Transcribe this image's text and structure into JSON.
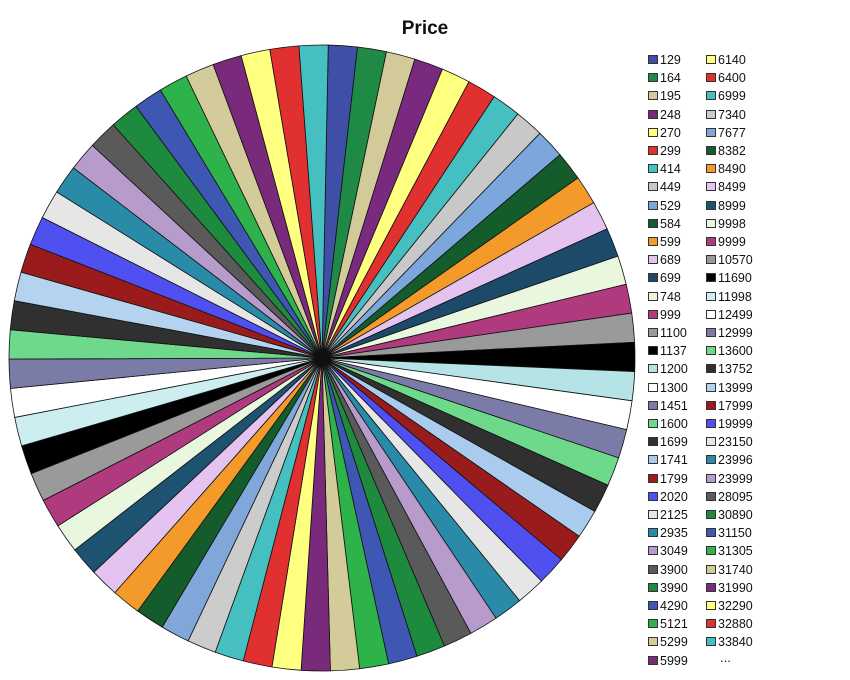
{
  "chart_data": {
    "type": "pie",
    "title": "Price",
    "legend_position": "right",
    "more_indicator": "...",
    "slices": [
      {
        "label": "129",
        "value": 1,
        "color": "#3F4FA8"
      },
      {
        "label": "164",
        "value": 1,
        "color": "#1E8A45"
      },
      {
        "label": "195",
        "value": 1,
        "color": "#D2CB99"
      },
      {
        "label": "248",
        "value": 1,
        "color": "#7A2A7E"
      },
      {
        "label": "270",
        "value": 1,
        "color": "#FFFF80"
      },
      {
        "label": "299",
        "value": 1,
        "color": "#E03030"
      },
      {
        "label": "414",
        "value": 1,
        "color": "#45BFC0"
      },
      {
        "label": "449",
        "value": 1,
        "color": "#C8C8C8"
      },
      {
        "label": "529",
        "value": 1,
        "color": "#7CA7DC"
      },
      {
        "label": "584",
        "value": 1,
        "color": "#155C2C"
      },
      {
        "label": "599",
        "value": 1,
        "color": "#F39A2A"
      },
      {
        "label": "689",
        "value": 1,
        "color": "#E4C3F0"
      },
      {
        "label": "699",
        "value": 1,
        "color": "#1D4A6B"
      },
      {
        "label": "748",
        "value": 1,
        "color": "#E8F7DE"
      },
      {
        "label": "999",
        "value": 1,
        "color": "#B03A7E"
      },
      {
        "label": "1100",
        "value": 1,
        "color": "#9A9A9A"
      },
      {
        "label": "1137",
        "value": 1,
        "color": "#000000"
      },
      {
        "label": "1200",
        "value": 1,
        "color": "#B6E3E5"
      },
      {
        "label": "1300",
        "value": 1,
        "color": "#FFFFFF"
      },
      {
        "label": "1451",
        "value": 1,
        "color": "#7B7BA8"
      },
      {
        "label": "1600",
        "value": 1,
        "color": "#6ED98A"
      },
      {
        "label": "1699",
        "value": 1,
        "color": "#303030"
      },
      {
        "label": "1741",
        "value": 1,
        "color": "#A9CCEE"
      },
      {
        "label": "1799",
        "value": 1,
        "color": "#9A1B1B"
      },
      {
        "label": "2020",
        "value": 1,
        "color": "#5050F0"
      },
      {
        "label": "2125",
        "value": 1,
        "color": "#E6E6E6"
      },
      {
        "label": "2935",
        "value": 1,
        "color": "#2A8BA8"
      },
      {
        "label": "3049",
        "value": 1,
        "color": "#B69BCB"
      },
      {
        "label": "3900",
        "value": 1,
        "color": "#5A5A5A"
      },
      {
        "label": "3990",
        "value": 1,
        "color": "#1D8A3E"
      },
      {
        "label": "4290",
        "value": 1,
        "color": "#3D57B2"
      },
      {
        "label": "5121",
        "value": 1,
        "color": "#2EB24A"
      },
      {
        "label": "5299",
        "value": 1,
        "color": "#D3CC9A"
      },
      {
        "label": "5999",
        "value": 1,
        "color": "#7A2A7A"
      },
      {
        "label": "6140",
        "value": 1,
        "color": "#FFFF80"
      },
      {
        "label": "6400",
        "value": 1,
        "color": "#E03030"
      },
      {
        "label": "6999",
        "value": 1,
        "color": "#45BFC0"
      },
      {
        "label": "7340",
        "value": 1,
        "color": "#CCCCCC"
      },
      {
        "label": "7677",
        "value": 1,
        "color": "#7FA7DA"
      },
      {
        "label": "8382",
        "value": 1,
        "color": "#155C2C"
      },
      {
        "label": "8490",
        "value": 1,
        "color": "#F39A2A"
      },
      {
        "label": "8499",
        "value": 1,
        "color": "#E4C3F0"
      },
      {
        "label": "8999",
        "value": 1,
        "color": "#1D5270"
      },
      {
        "label": "9998",
        "value": 1,
        "color": "#E8F7DE"
      },
      {
        "label": "9999",
        "value": 1,
        "color": "#B03A7E"
      },
      {
        "label": "10570",
        "value": 1,
        "color": "#9A9A9A"
      },
      {
        "label": "11690",
        "value": 1,
        "color": "#000000"
      },
      {
        "label": "11998",
        "value": 1,
        "color": "#CCEEF0"
      },
      {
        "label": "12499",
        "value": 1,
        "color": "#FFFFFF"
      },
      {
        "label": "12999",
        "value": 1,
        "color": "#7B7BA8"
      },
      {
        "label": "13600",
        "value": 1,
        "color": "#6ED98A"
      },
      {
        "label": "13752",
        "value": 1,
        "color": "#303030"
      },
      {
        "label": "13999",
        "value": 1,
        "color": "#B3D3EE"
      },
      {
        "label": "17999",
        "value": 1,
        "color": "#9A1B1B"
      },
      {
        "label": "19999",
        "value": 1,
        "color": "#5050F0"
      },
      {
        "label": "23150",
        "value": 1,
        "color": "#E6E6E6"
      },
      {
        "label": "23996",
        "value": 1,
        "color": "#2A8BA8"
      },
      {
        "label": "23999",
        "value": 1,
        "color": "#B69BCB"
      },
      {
        "label": "28095",
        "value": 1,
        "color": "#5A5A5A"
      },
      {
        "label": "30890",
        "value": 1,
        "color": "#1D8A3E"
      },
      {
        "label": "31150",
        "value": 1,
        "color": "#3D57B2"
      },
      {
        "label": "31305",
        "value": 1,
        "color": "#2EB24A"
      },
      {
        "label": "31740",
        "value": 1,
        "color": "#D3CC9A"
      },
      {
        "label": "31990",
        "value": 1,
        "color": "#7A2A7A"
      },
      {
        "label": "32290",
        "value": 1,
        "color": "#FFFF80"
      },
      {
        "label": "32880",
        "value": 1,
        "color": "#E03030"
      },
      {
        "label": "33840",
        "value": 1,
        "color": "#45BFC0"
      }
    ]
  }
}
